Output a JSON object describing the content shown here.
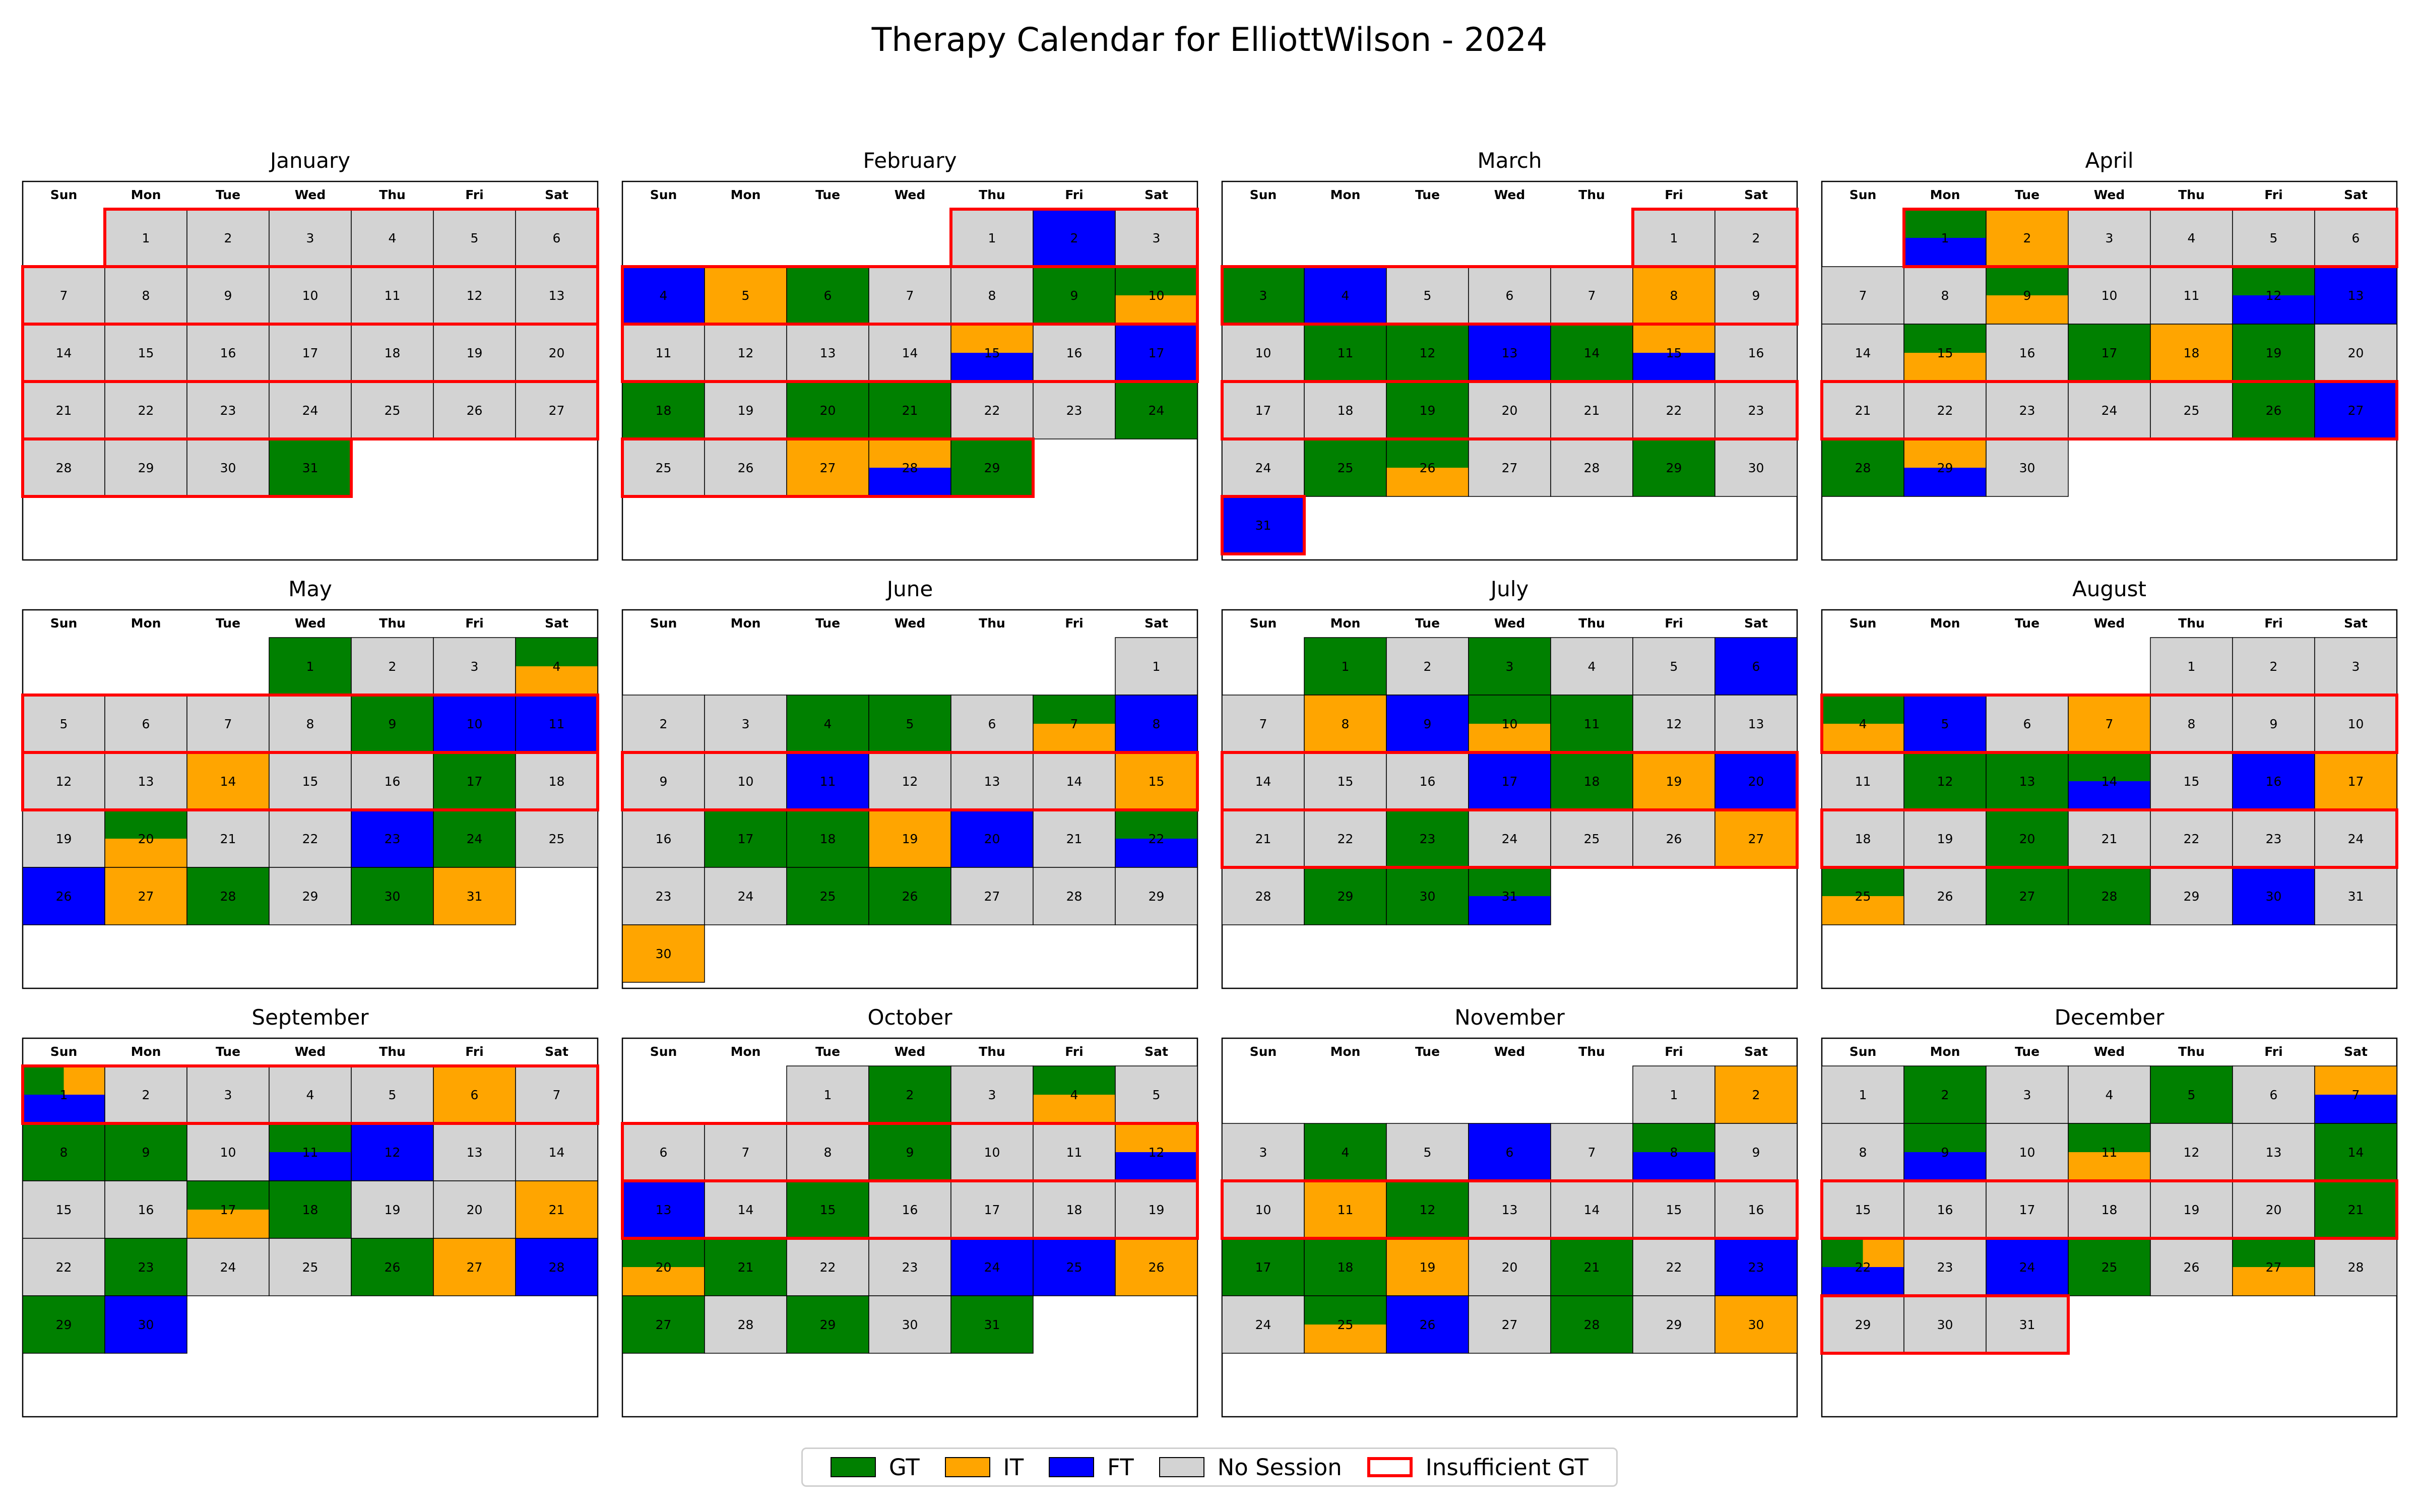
{
  "figure": {
    "title": "Therapy Calendar for ElliottWilson - 2024"
  },
  "colors": {
    "GT": "#008000",
    "IT": "#FFA500",
    "FT": "#0000FF",
    "none": "#D3D3D3",
    "highlight": "#FF0000"
  },
  "legend": [
    {
      "key": "GT",
      "label": "GT",
      "swatch": "fill",
      "color": "#008000"
    },
    {
      "key": "IT",
      "label": "IT",
      "swatch": "fill",
      "color": "#FFA500"
    },
    {
      "key": "FT",
      "label": "FT",
      "swatch": "fill",
      "color": "#0000FF"
    },
    {
      "key": "none",
      "label": "No Session",
      "swatch": "fill",
      "color": "#D3D3D3"
    },
    {
      "key": "insufficient",
      "label": "Insufficient GT",
      "swatch": "outline",
      "color": "#FF0000"
    }
  ],
  "chart_data": {
    "type": "heatmap",
    "title": "Therapy Calendar for ElliottWilson - 2024",
    "year": 2024,
    "weekday_labels": [
      "Sun",
      "Mon",
      "Tue",
      "Wed",
      "Thu",
      "Fri",
      "Sat"
    ],
    "legend_placement": "bottom-center",
    "months": [
      {
        "name": "January",
        "days": 31,
        "sessions": {
          "31": [
            "GT"
          ]
        },
        "insufficient_weeks": [
          0,
          1,
          2,
          3,
          4
        ]
      },
      {
        "name": "February",
        "days": 29,
        "sessions": {
          "2": [
            "FT"
          ],
          "4": [
            "FT"
          ],
          "5": [
            "IT"
          ],
          "6": [
            "GT"
          ],
          "9": [
            "GT"
          ],
          "10": [
            "GT",
            "IT"
          ],
          "15": [
            "IT",
            "FT"
          ],
          "17": [
            "FT"
          ],
          "18": [
            "GT"
          ],
          "20": [
            "GT"
          ],
          "21": [
            "GT"
          ],
          "24": [
            "GT"
          ],
          "27": [
            "IT"
          ],
          "28": [
            "IT",
            "FT"
          ],
          "29": [
            "GT"
          ]
        },
        "insufficient_weeks": [
          0,
          1,
          2,
          4
        ]
      },
      {
        "name": "March",
        "days": 31,
        "sessions": {
          "3": [
            "GT"
          ],
          "4": [
            "FT"
          ],
          "8": [
            "IT"
          ],
          "11": [
            "GT"
          ],
          "12": [
            "GT"
          ],
          "13": [
            "FT"
          ],
          "14": [
            "GT"
          ],
          "15": [
            "IT",
            "FT"
          ],
          "19": [
            "GT"
          ],
          "25": [
            "GT"
          ],
          "26": [
            "GT",
            "IT"
          ],
          "29": [
            "GT"
          ],
          "31": [
            "FT"
          ]
        },
        "insufficient_weeks": [
          0,
          1,
          3,
          5
        ]
      },
      {
        "name": "April",
        "days": 30,
        "sessions": {
          "1": [
            "GT",
            "FT"
          ],
          "2": [
            "IT"
          ],
          "9": [
            "GT",
            "IT"
          ],
          "12": [
            "GT",
            "FT"
          ],
          "13": [
            "FT"
          ],
          "15": [
            "GT",
            "IT"
          ],
          "17": [
            "GT"
          ],
          "18": [
            "IT"
          ],
          "19": [
            "GT"
          ],
          "26": [
            "GT"
          ],
          "27": [
            "FT"
          ],
          "28": [
            "GT"
          ],
          "29": [
            "IT",
            "FT"
          ]
        },
        "insufficient_weeks": [
          0,
          3
        ]
      },
      {
        "name": "May",
        "days": 31,
        "sessions": {
          "1": [
            "GT"
          ],
          "4": [
            "GT",
            "IT"
          ],
          "9": [
            "GT"
          ],
          "10": [
            "FT"
          ],
          "11": [
            "FT"
          ],
          "14": [
            "IT"
          ],
          "17": [
            "GT"
          ],
          "20": [
            "GT",
            "IT"
          ],
          "23": [
            "FT"
          ],
          "24": [
            "GT"
          ],
          "26": [
            "FT"
          ],
          "27": [
            "IT"
          ],
          "28": [
            "GT"
          ],
          "30": [
            "GT"
          ],
          "31": [
            "IT"
          ]
        },
        "insufficient_weeks": [
          1,
          2
        ]
      },
      {
        "name": "June",
        "days": 30,
        "sessions": {
          "4": [
            "GT"
          ],
          "5": [
            "GT"
          ],
          "7": [
            "GT",
            "IT"
          ],
          "8": [
            "FT"
          ],
          "11": [
            "FT"
          ],
          "15": [
            "IT"
          ],
          "17": [
            "GT"
          ],
          "18": [
            "GT"
          ],
          "19": [
            "IT"
          ],
          "20": [
            "FT"
          ],
          "22": [
            "GT",
            "FT"
          ],
          "25": [
            "GT"
          ],
          "26": [
            "GT"
          ],
          "30": [
            "IT"
          ]
        },
        "insufficient_weeks": [
          2
        ]
      },
      {
        "name": "July",
        "days": 31,
        "sessions": {
          "1": [
            "GT"
          ],
          "3": [
            "GT"
          ],
          "6": [
            "FT"
          ],
          "8": [
            "IT"
          ],
          "9": [
            "FT"
          ],
          "10": [
            "GT",
            "IT"
          ],
          "11": [
            "GT"
          ],
          "17": [
            "FT"
          ],
          "18": [
            "GT"
          ],
          "19": [
            "IT"
          ],
          "20": [
            "FT"
          ],
          "23": [
            "GT"
          ],
          "27": [
            "IT"
          ],
          "29": [
            "GT"
          ],
          "30": [
            "GT"
          ],
          "31": [
            "GT",
            "FT"
          ]
        },
        "insufficient_weeks": [
          2,
          3
        ]
      },
      {
        "name": "August",
        "days": 31,
        "sessions": {
          "4": [
            "GT",
            "IT"
          ],
          "5": [
            "FT"
          ],
          "7": [
            "IT"
          ],
          "12": [
            "GT"
          ],
          "13": [
            "GT"
          ],
          "14": [
            "GT",
            "FT"
          ],
          "16": [
            "FT"
          ],
          "17": [
            "IT"
          ],
          "20": [
            "GT"
          ],
          "25": [
            "GT",
            "IT"
          ],
          "27": [
            "GT"
          ],
          "28": [
            "GT"
          ],
          "30": [
            "FT"
          ]
        },
        "insufficient_weeks": [
          1,
          3
        ]
      },
      {
        "name": "September",
        "days": 30,
        "sessions": {
          "1": [
            "GT",
            "IT",
            "FT"
          ],
          "6": [
            "IT"
          ],
          "8": [
            "GT"
          ],
          "9": [
            "GT"
          ],
          "11": [
            "GT",
            "FT"
          ],
          "12": [
            "FT"
          ],
          "17": [
            "GT",
            "IT"
          ],
          "18": [
            "GT"
          ],
          "21": [
            "IT"
          ],
          "23": [
            "GT"
          ],
          "26": [
            "GT"
          ],
          "27": [
            "IT"
          ],
          "28": [
            "FT"
          ],
          "29": [
            "GT"
          ],
          "30": [
            "FT"
          ]
        },
        "insufficient_weeks": [
          0
        ]
      },
      {
        "name": "October",
        "days": 31,
        "sessions": {
          "2": [
            "GT"
          ],
          "4": [
            "GT",
            "IT"
          ],
          "9": [
            "GT"
          ],
          "12": [
            "IT",
            "FT"
          ],
          "13": [
            "FT"
          ],
          "15": [
            "GT"
          ],
          "20": [
            "GT",
            "IT"
          ],
          "21": [
            "GT"
          ],
          "24": [
            "FT"
          ],
          "25": [
            "FT"
          ],
          "26": [
            "IT"
          ],
          "27": [
            "GT"
          ],
          "29": [
            "GT"
          ],
          "31": [
            "GT"
          ]
        },
        "insufficient_weeks": [
          1,
          2
        ]
      },
      {
        "name": "November",
        "days": 30,
        "sessions": {
          "2": [
            "IT"
          ],
          "4": [
            "GT"
          ],
          "6": [
            "FT"
          ],
          "8": [
            "GT",
            "FT"
          ],
          "11": [
            "IT"
          ],
          "12": [
            "GT"
          ],
          "17": [
            "GT"
          ],
          "18": [
            "GT"
          ],
          "19": [
            "IT"
          ],
          "21": [
            "GT"
          ],
          "23": [
            "FT"
          ],
          "25": [
            "GT",
            "IT"
          ],
          "26": [
            "FT"
          ],
          "28": [
            "GT"
          ],
          "30": [
            "IT"
          ]
        },
        "insufficient_weeks": [
          2
        ]
      },
      {
        "name": "December",
        "days": 31,
        "sessions": {
          "2": [
            "GT"
          ],
          "5": [
            "GT"
          ],
          "7": [
            "IT",
            "FT"
          ],
          "9": [
            "GT",
            "FT"
          ],
          "11": [
            "GT",
            "IT"
          ],
          "14": [
            "GT"
          ],
          "21": [
            "GT"
          ],
          "22": [
            "GT",
            "IT",
            "FT"
          ],
          "24": [
            "FT"
          ],
          "25": [
            "GT"
          ],
          "27": [
            "GT",
            "IT"
          ]
        },
        "insufficient_weeks": [
          2,
          4
        ]
      }
    ]
  }
}
